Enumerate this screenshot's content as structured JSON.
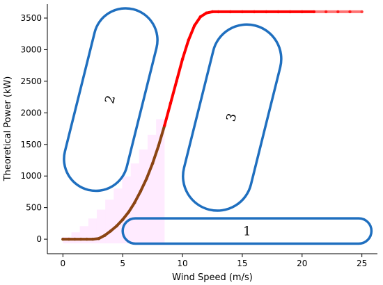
{
  "chart_data": {
    "type": "scatter",
    "title": "",
    "xlabel": "Wind Speed (m/s)",
    "ylabel": "Theoretical  Power (kW)",
    "xlim": [
      -1.3,
      26.3
    ],
    "ylim": [
      -230,
      3720
    ],
    "xticks": [
      0,
      5,
      10,
      15,
      20,
      25
    ],
    "yticks": [
      0,
      500,
      1000,
      1500,
      2000,
      2500,
      3000,
      3500
    ],
    "grid": false,
    "power_curve": {
      "x": [
        0,
        0.5,
        1,
        1.5,
        2,
        2.5,
        3,
        3.5,
        4,
        4.5,
        5,
        5.5,
        6,
        6.5,
        7,
        7.5,
        8,
        8.5,
        9,
        9.5,
        10,
        10.5,
        11,
        11.5,
        12,
        12.5,
        13,
        14,
        15,
        16,
        17,
        18,
        19,
        20,
        21,
        22,
        23,
        24,
        25
      ],
      "y": [
        0,
        0,
        0,
        0,
        0,
        0,
        10,
        60,
        130,
        210,
        310,
        430,
        580,
        760,
        960,
        1200,
        1480,
        1800,
        2150,
        2500,
        2850,
        3150,
        3380,
        3520,
        3580,
        3600,
        3600,
        3600,
        3600,
        3600,
        3600,
        3600,
        3600,
        3600,
        3600,
        3600,
        3600,
        3600,
        3600
      ],
      "color_low": "#8b4513",
      "color_high": "#ff0000",
      "color_split": 1600
    },
    "regions": [
      {
        "label": "1",
        "color": "#1f6fbf",
        "shape": "stadium",
        "x": [
          5,
          25.8
        ],
        "y": [
          -70,
          330
        ]
      },
      {
        "label": "2",
        "color": "#1f6fbf",
        "shape": "tilted",
        "x": [
          -0.3,
          8.3
        ],
        "y": [
          830,
          3590
        ],
        "angle": -76
      },
      {
        "label": "3",
        "color": "#1f6fbf",
        "shape": "tilted",
        "x": [
          9.5,
          18.8
        ],
        "y": [
          550,
          3300
        ],
        "angle": -76
      }
    ],
    "shading": {
      "color": "#ff66ff",
      "x": [
        0,
        8.5
      ],
      "y": [
        0,
        1900
      ]
    }
  }
}
